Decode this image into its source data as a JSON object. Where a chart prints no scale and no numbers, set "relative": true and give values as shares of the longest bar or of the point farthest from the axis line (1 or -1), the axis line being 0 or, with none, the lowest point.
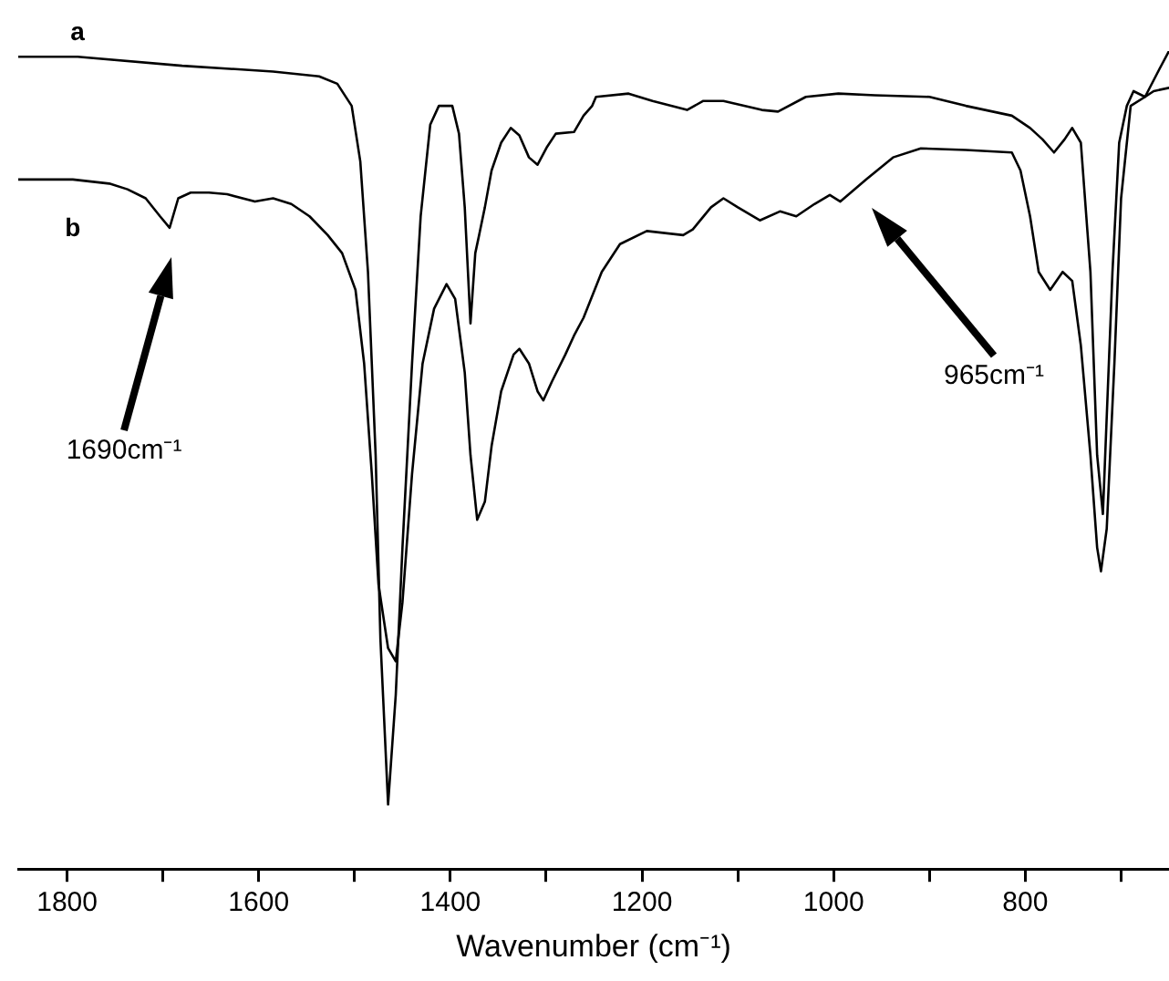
{
  "chart_data": {
    "type": "line",
    "relative": true,
    "xlabel": "Wavenumber (cm⁻¹)",
    "xlim": [
      1851,
      650
    ],
    "xticks": [
      1800,
      {
        "value": 1700,
        "label": null
      },
      1600,
      {
        "value": 1500,
        "label": null
      },
      1400,
      {
        "value": 1300,
        "label": null
      },
      1200,
      {
        "value": 1100,
        "label": null
      },
      1000,
      {
        "value": 900,
        "label": null
      },
      800,
      {
        "value": 700,
        "label": null
      }
    ],
    "legend": false,
    "grid": false,
    "marker": "none",
    "line_style": "solid",
    "annotations": [
      "1690cm⁻¹",
      "965cm⁻¹"
    ],
    "series": [
      {
        "name": "a",
        "color": "#000000",
        "x": [
          1851,
          1789,
          1680,
          1585,
          1537,
          1518,
          1503,
          1494,
          1486,
          1478,
          1473,
          1465,
          1457,
          1450,
          1440,
          1431,
          1421,
          1412,
          1398,
          1391,
          1385,
          1379,
          1374,
          1370,
          1364,
          1357,
          1347,
          1337,
          1328,
          1318,
          1309,
          1299,
          1290,
          1271,
          1261,
          1252,
          1248,
          1214,
          1189,
          1153,
          1136,
          1115,
          1075,
          1058,
          1029,
          995,
          957,
          900,
          862,
          814,
          795,
          782,
          770,
          759,
          751,
          742,
          732,
          725,
          719,
          709,
          702,
          694,
          687,
          675,
          666,
          650
        ],
        "values": [
          0.993,
          0.993,
          0.982,
          0.975,
          0.969,
          0.96,
          0.933,
          0.865,
          0.73,
          0.506,
          0.281,
          0.079,
          0.213,
          0.393,
          0.618,
          0.798,
          0.91,
          0.933,
          0.933,
          0.899,
          0.809,
          0.667,
          0.753,
          0.775,
          0.809,
          0.854,
          0.888,
          0.906,
          0.897,
          0.87,
          0.861,
          0.883,
          0.899,
          0.901,
          0.921,
          0.933,
          0.944,
          0.948,
          0.939,
          0.928,
          0.939,
          0.939,
          0.928,
          0.926,
          0.944,
          0.948,
          0.946,
          0.944,
          0.933,
          0.921,
          0.906,
          0.892,
          0.876,
          0.892,
          0.906,
          0.888,
          0.73,
          0.506,
          0.434,
          0.73,
          0.888,
          0.933,
          0.951,
          0.944,
          0.951,
          0.955
        ]
      },
      {
        "name": "b",
        "color": "#000000",
        "x": [
          1851,
          1794,
          1756,
          1737,
          1718,
          1703,
          1693,
          1684,
          1671,
          1652,
          1633,
          1604,
          1585,
          1566,
          1547,
          1528,
          1513,
          1499,
          1490,
          1482,
          1475,
          1465,
          1457,
          1450,
          1440,
          1429,
          1417,
          1404,
          1395,
          1385,
          1379,
          1372,
          1364,
          1357,
          1347,
          1334,
          1328,
          1318,
          1309,
          1303,
          1294,
          1280,
          1271,
          1261,
          1242,
          1223,
          1195,
          1157,
          1147,
          1128,
          1115,
          1100,
          1077,
          1056,
          1039,
          1020,
          1004,
          993,
          966,
          938,
          909,
          862,
          814,
          805,
          795,
          786,
          774,
          761,
          751,
          742,
          732,
          725,
          721,
          715,
          707,
          700,
          690,
          675,
          660,
          650
        ],
        "values": [
          0.843,
          0.843,
          0.838,
          0.831,
          0.82,
          0.798,
          0.784,
          0.82,
          0.827,
          0.827,
          0.825,
          0.816,
          0.82,
          0.813,
          0.798,
          0.775,
          0.753,
          0.708,
          0.618,
          0.483,
          0.348,
          0.27,
          0.254,
          0.326,
          0.483,
          0.618,
          0.685,
          0.715,
          0.697,
          0.607,
          0.506,
          0.427,
          0.449,
          0.517,
          0.584,
          0.629,
          0.636,
          0.618,
          0.584,
          0.573,
          0.596,
          0.629,
          0.652,
          0.674,
          0.73,
          0.764,
          0.78,
          0.775,
          0.782,
          0.809,
          0.82,
          0.809,
          0.793,
          0.804,
          0.798,
          0.813,
          0.824,
          0.816,
          0.843,
          0.87,
          0.881,
          0.879,
          0.876,
          0.854,
          0.798,
          0.73,
          0.708,
          0.73,
          0.719,
          0.64,
          0.506,
          0.393,
          0.364,
          0.416,
          0.618,
          0.82,
          0.933,
          0.944,
          0.978,
          1.0
        ]
      }
    ]
  }
}
